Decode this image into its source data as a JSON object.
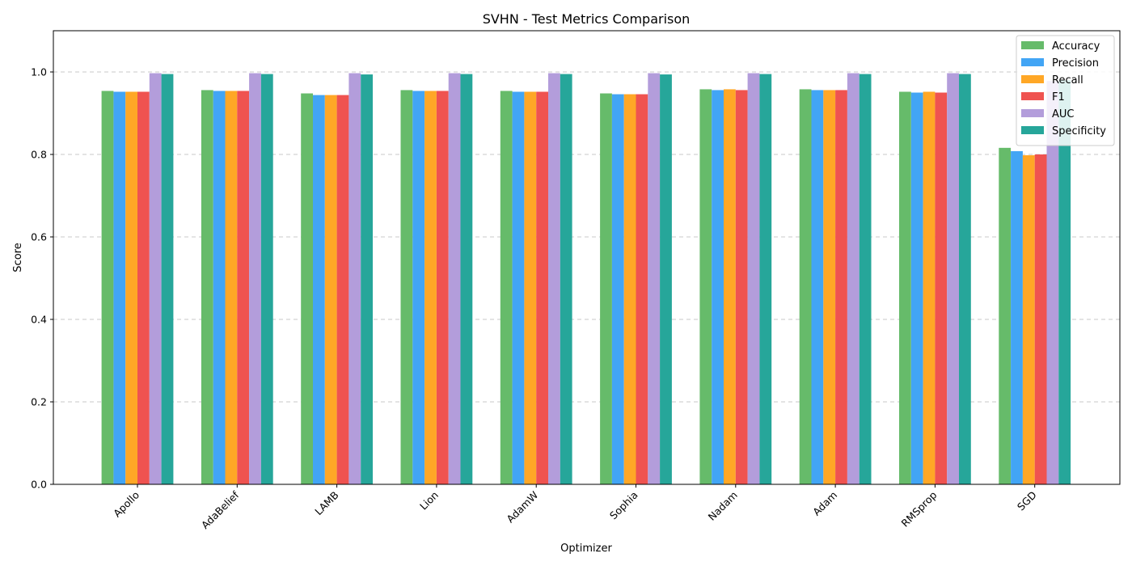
{
  "chart_data": {
    "type": "bar",
    "title": "SVHN - Test Metrics Comparison",
    "xlabel": "Optimizer",
    "ylabel": "Score",
    "ylim": [
      0,
      1.1
    ],
    "yticks": [
      "0.0",
      "0.2",
      "0.4",
      "0.6",
      "0.8",
      "1.0"
    ],
    "grid": "y-dashed",
    "legend_position": "top-right",
    "categories": [
      "Apollo",
      "AdaBelief",
      "LAMB",
      "Lion",
      "AdamW",
      "Sophia",
      "Nadam",
      "Adam",
      "RMSprop",
      "SGD"
    ],
    "series": [
      {
        "name": "Accuracy",
        "color": "#66bb6a",
        "values": [
          0.954,
          0.956,
          0.948,
          0.956,
          0.954,
          0.948,
          0.958,
          0.958,
          0.952,
          0.816
        ]
      },
      {
        "name": "Precision",
        "color": "#42a5f5",
        "values": [
          0.952,
          0.954,
          0.944,
          0.954,
          0.952,
          0.946,
          0.956,
          0.956,
          0.95,
          0.808
        ]
      },
      {
        "name": "Recall",
        "color": "#ffa726",
        "values": [
          0.952,
          0.954,
          0.944,
          0.954,
          0.952,
          0.946,
          0.958,
          0.956,
          0.952,
          0.798
        ]
      },
      {
        "name": "F1",
        "color": "#ef5350",
        "values": [
          0.952,
          0.954,
          0.944,
          0.954,
          0.952,
          0.946,
          0.956,
          0.956,
          0.95,
          0.8
        ]
      },
      {
        "name": "AUC",
        "color": "#b39ddb",
        "values": [
          0.997,
          0.997,
          0.997,
          0.997,
          0.997,
          0.997,
          0.997,
          0.997,
          0.997,
          0.978
        ]
      },
      {
        "name": "Specificity",
        "color": "#26a69a",
        "values": [
          0.995,
          0.995,
          0.994,
          0.995,
          0.995,
          0.994,
          0.995,
          0.995,
          0.995,
          0.98
        ]
      }
    ]
  }
}
